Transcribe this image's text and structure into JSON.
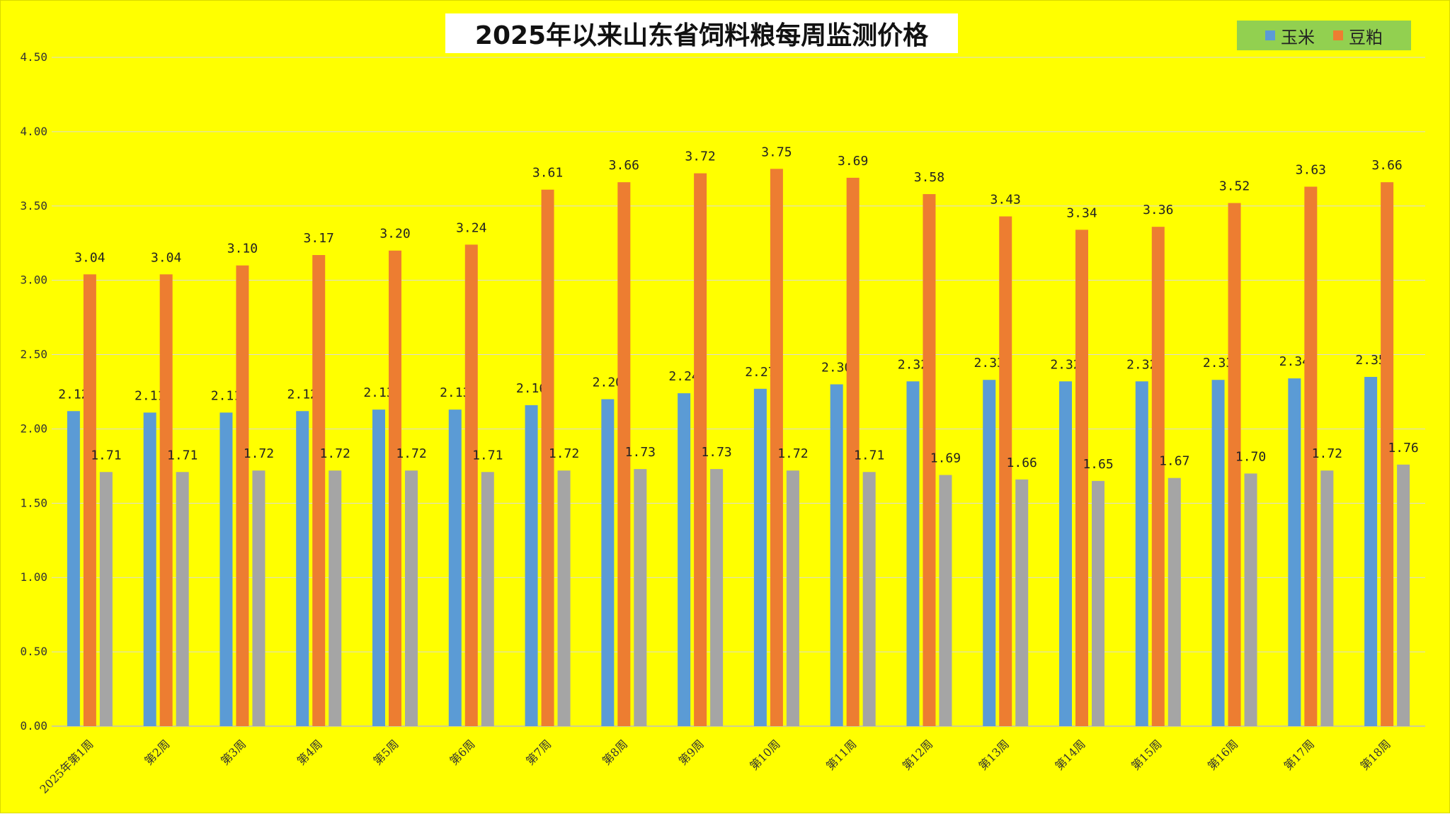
{
  "chart_data": {
    "type": "bar",
    "title": "2025年以来山东省饲料粮每周监测价格",
    "xlabel": "",
    "ylabel": "",
    "ylim": [
      0,
      4.5
    ],
    "yticks": [
      "0.00",
      "0.50",
      "1.00",
      "1.50",
      "2.00",
      "2.50",
      "3.00",
      "3.50",
      "4.00",
      "4.50"
    ],
    "grid": true,
    "legend_position": "top-right",
    "categories": [
      "2025年第1周",
      "第2周",
      "第3周",
      "第4周",
      "第5周",
      "第6周",
      "第7周",
      "第8周",
      "第9周",
      "第10周",
      "第11周",
      "第12周",
      "第13周",
      "第14周",
      "第15周",
      "第16周",
      "第17周",
      "第18周"
    ],
    "series": [
      {
        "name": "玉米",
        "color": "#5b9bd5",
        "in_legend": true,
        "values": [
          2.12,
          2.11,
          2.11,
          2.12,
          2.13,
          2.13,
          2.16,
          2.2,
          2.24,
          2.27,
          2.3,
          2.32,
          2.33,
          2.32,
          2.32,
          2.33,
          2.34,
          2.35
        ]
      },
      {
        "name": "豆粕",
        "color": "#ed7d31",
        "in_legend": true,
        "values": [
          3.04,
          3.04,
          3.1,
          3.17,
          3.2,
          3.24,
          3.61,
          3.66,
          3.72,
          3.75,
          3.69,
          3.58,
          3.43,
          3.34,
          3.36,
          3.52,
          3.63,
          3.66
        ]
      },
      {
        "color": "#a5a5a5",
        "in_legend": false,
        "values": [
          1.71,
          1.71,
          1.72,
          1.72,
          1.72,
          1.71,
          1.72,
          1.73,
          1.73,
          1.72,
          1.71,
          1.69,
          1.66,
          1.65,
          1.67,
          1.7,
          1.72,
          1.76
        ]
      }
    ]
  }
}
